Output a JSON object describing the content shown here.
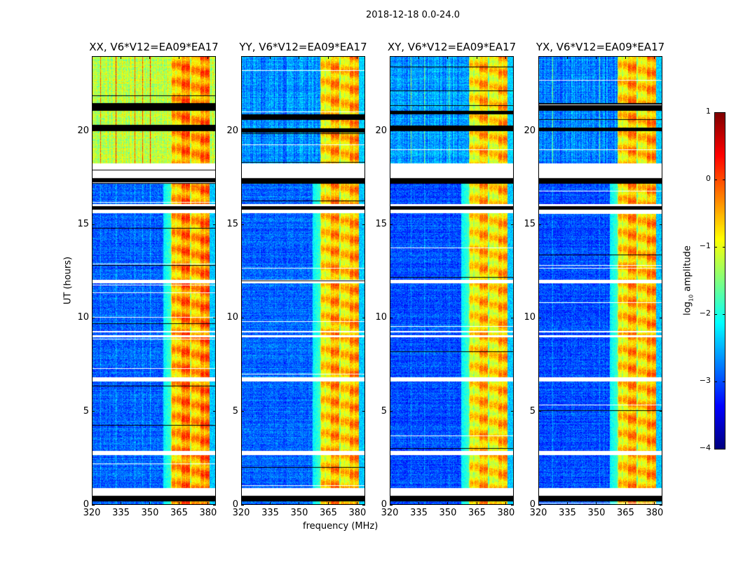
{
  "chart_data": {
    "type": "heatmap",
    "title": "2018-12-18 0.0-24.0",
    "xlabel": "frequency (MHz)",
    "ylabel": "UT (hours)",
    "xlim": [
      320,
      384
    ],
    "ylim": [
      0,
      24
    ],
    "xticks": [
      320,
      335,
      350,
      365,
      380
    ],
    "yticks": [
      0,
      5,
      10,
      15,
      20
    ],
    "colorbar": {
      "label_prefix": "log",
      "label_sub": "10",
      "label_suffix": " amplitude",
      "range": [
        -4,
        1
      ],
      "ticks": [
        1,
        0,
        -1,
        -2,
        -3,
        -4
      ],
      "tick_labels": [
        "1",
        "0",
        "−1",
        "−2",
        "−3",
        "−4"
      ],
      "colormap": "jet"
    },
    "rfi_band_mhz": [
      361,
      381
    ],
    "rfi_subband_edges_mhz": [
      361,
      366,
      371,
      376,
      381
    ],
    "flagged_white_hours": [
      [
        0.45,
        0.85
      ],
      [
        2.65,
        2.85
      ],
      [
        6.6,
        6.8
      ],
      [
        8.95,
        9.05
      ],
      [
        9.2,
        9.3
      ],
      [
        11.85,
        12.05
      ],
      [
        17.5,
        18.3
      ],
      [
        15.6,
        15.8
      ],
      [
        16.0,
        16.1
      ]
    ],
    "flagged_black_hours": [
      [
        0.15,
        0.45
      ],
      [
        17.2,
        17.5
      ],
      [
        15.8,
        16.0
      ]
    ],
    "panels": [
      {
        "title": "XX, V6*V12=EA09*EA17",
        "base_level": -2.9,
        "rfi_level": -0.4,
        "night_level": -1.2,
        "black_hours": [
          [
            20.0,
            20.35
          ],
          [
            21.1,
            21.5
          ]
        ]
      },
      {
        "title": "YY, V6*V12=EA09*EA17",
        "base_level": -2.9,
        "rfi_level": -0.6,
        "night_level": -2.7,
        "black_hours": [
          [
            19.95,
            20.15
          ],
          [
            20.6,
            20.9
          ]
        ]
      },
      {
        "title": "XY, V6*V12=EA09*EA17",
        "base_level": -3.0,
        "rfi_level": -0.7,
        "night_level": -2.6,
        "black_hours": [
          [
            20.0,
            20.3
          ],
          [
            20.9,
            21.1
          ]
        ]
      },
      {
        "title": "YX, V6*V12=EA09*EA17",
        "base_level": -3.0,
        "rfi_level": -0.6,
        "night_level": -2.7,
        "black_hours": [
          [
            20.0,
            20.2
          ],
          [
            21.1,
            21.5
          ]
        ]
      }
    ]
  }
}
